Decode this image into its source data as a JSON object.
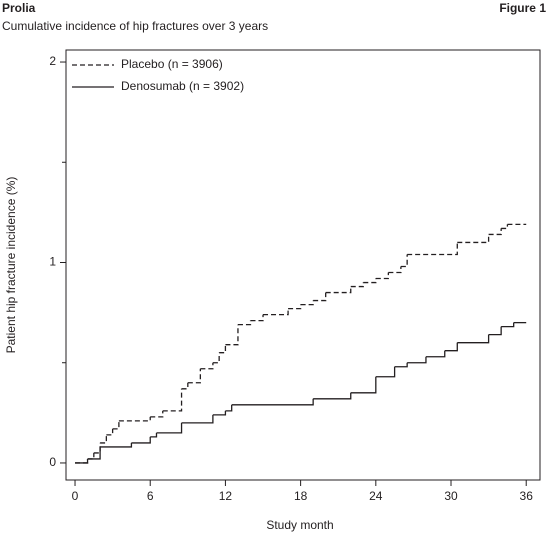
{
  "header": {
    "title": "Prolia",
    "figure": "Figure 1"
  },
  "chart_data": {
    "type": "step",
    "subtitle": "Cumulative incidence of hip fractures over 3 years",
    "x_label": "Study month",
    "y_label": "Patient hip fracture incidence (%)",
    "xlim": [
      -0.72,
      37.1
    ],
    "ylim": [
      -0.085,
      2.06
    ],
    "xticks": [
      0,
      6,
      12,
      18,
      24,
      30,
      36
    ],
    "yticks": [
      0,
      1,
      2
    ],
    "yminorticks": [
      0.5,
      1.5
    ],
    "grid": false,
    "legend": "top-left",
    "series": [
      {
        "name": "Placebo (n = 3906)",
        "color": "#231f20",
        "line_style": "dashed",
        "x": [
          0,
          1,
          1.5,
          2,
          2.5,
          3,
          3.5,
          6,
          7,
          8.5,
          9,
          10,
          11,
          11.5,
          12,
          13,
          14,
          15,
          17,
          18,
          19,
          20,
          22,
          23,
          24,
          25,
          26,
          26.5,
          30.5,
          33,
          34,
          34.5,
          36
        ],
        "values": [
          0,
          0.02,
          0.05,
          0.1,
          0.14,
          0.17,
          0.21,
          0.23,
          0.26,
          0.37,
          0.4,
          0.47,
          0.5,
          0.55,
          0.59,
          0.69,
          0.71,
          0.74,
          0.77,
          0.79,
          0.81,
          0.85,
          0.88,
          0.9,
          0.92,
          0.95,
          0.98,
          1.04,
          1.1,
          1.14,
          1.17,
          1.19,
          1.19
        ]
      },
      {
        "name": "Denosumab (n = 3902)",
        "color": "#231f20",
        "line_style": "solid",
        "x": [
          0,
          1,
          2,
          4.5,
          6,
          6.5,
          8.5,
          11,
          12,
          12.5,
          19,
          22,
          24,
          25.5,
          26.5,
          28,
          29.5,
          30.5,
          33,
          34,
          35,
          36
        ],
        "values": [
          0,
          0.02,
          0.08,
          0.1,
          0.13,
          0.15,
          0.2,
          0.24,
          0.26,
          0.29,
          0.32,
          0.35,
          0.43,
          0.48,
          0.5,
          0.53,
          0.56,
          0.6,
          0.64,
          0.68,
          0.7,
          0.7
        ]
      }
    ]
  }
}
